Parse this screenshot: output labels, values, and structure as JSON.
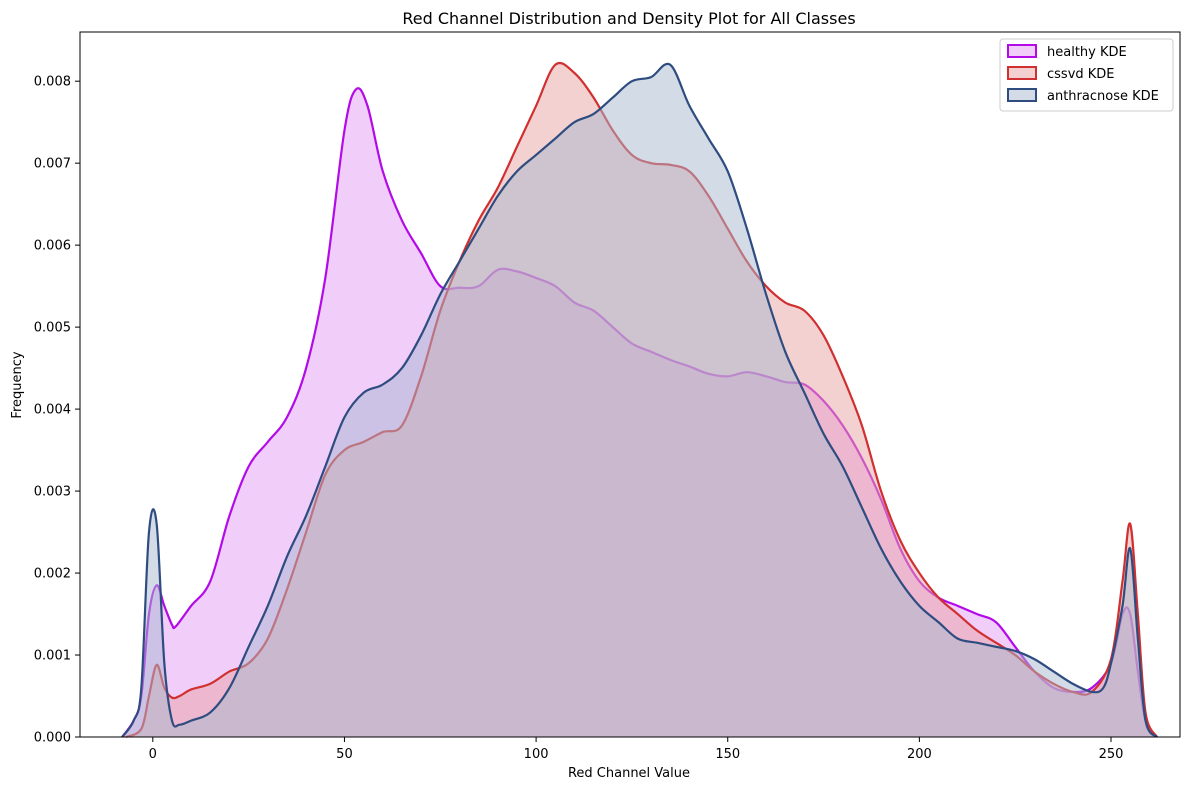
{
  "chart_data": {
    "type": "area",
    "title": "Red Channel Distribution and Density Plot for All Classes",
    "xlabel": "Red Channel Value",
    "ylabel": "Frequency",
    "xlim": [
      -19,
      268
    ],
    "ylim": [
      0,
      0.0086
    ],
    "xticks": [
      0,
      50,
      100,
      150,
      200,
      250
    ],
    "yticks": [
      0.0,
      0.001,
      0.002,
      0.003,
      0.004,
      0.005,
      0.006,
      0.007,
      0.008
    ],
    "ytick_labels": [
      "0.000",
      "0.001",
      "0.002",
      "0.003",
      "0.004",
      "0.005",
      "0.006",
      "0.007",
      "0.008"
    ],
    "grid": false,
    "legend_position": "top-right",
    "series": [
      {
        "name": "healthy KDE",
        "color": "#b20be8",
        "fill": "#e49bf6",
        "points": [
          [
            -8,
            0
          ],
          [
            -5,
            0.0002
          ],
          [
            -3,
            0.0005
          ],
          [
            -1,
            0.0015
          ],
          [
            1,
            0.00185
          ],
          [
            3,
            0.0016
          ],
          [
            5,
            0.00137
          ],
          [
            6,
            0.00135
          ],
          [
            10,
            0.0016
          ],
          [
            15,
            0.0019
          ],
          [
            20,
            0.0027
          ],
          [
            25,
            0.0033
          ],
          [
            30,
            0.0036
          ],
          [
            35,
            0.0039
          ],
          [
            40,
            0.0045
          ],
          [
            45,
            0.0056
          ],
          [
            50,
            0.0074
          ],
          [
            53,
            0.0079
          ],
          [
            56,
            0.0077
          ],
          [
            60,
            0.0069
          ],
          [
            65,
            0.0063
          ],
          [
            70,
            0.0059
          ],
          [
            75,
            0.0055
          ],
          [
            80,
            0.00548
          ],
          [
            85,
            0.0055
          ],
          [
            90,
            0.0057
          ],
          [
            95,
            0.00568
          ],
          [
            100,
            0.0056
          ],
          [
            105,
            0.0055
          ],
          [
            110,
            0.0053
          ],
          [
            115,
            0.0052
          ],
          [
            120,
            0.005
          ],
          [
            125,
            0.0048
          ],
          [
            130,
            0.0047
          ],
          [
            135,
            0.0046
          ],
          [
            140,
            0.00452
          ],
          [
            145,
            0.00443
          ],
          [
            150,
            0.0044
          ],
          [
            155,
            0.00445
          ],
          [
            160,
            0.0044
          ],
          [
            165,
            0.00433
          ],
          [
            170,
            0.0043
          ],
          [
            175,
            0.0041
          ],
          [
            180,
            0.0038
          ],
          [
            185,
            0.0034
          ],
          [
            190,
            0.0029
          ],
          [
            195,
            0.0023
          ],
          [
            200,
            0.0019
          ],
          [
            205,
            0.0017
          ],
          [
            210,
            0.0016
          ],
          [
            215,
            0.0015
          ],
          [
            220,
            0.0014
          ],
          [
            225,
            0.0011
          ],
          [
            230,
            0.0008
          ],
          [
            235,
            0.0006
          ],
          [
            240,
            0.00055
          ],
          [
            245,
            0.0006
          ],
          [
            250,
            0.0009
          ],
          [
            253,
            0.0015
          ],
          [
            255,
            0.0015
          ],
          [
            257,
            0.0008
          ],
          [
            259,
            0.0002
          ],
          [
            262,
            0
          ]
        ]
      },
      {
        "name": "cssvd KDE",
        "color": "#d03030",
        "fill": "#e9a3a3",
        "points": [
          [
            -7,
            0
          ],
          [
            -3,
            0.0001
          ],
          [
            -1,
            0.0005
          ],
          [
            1,
            0.00088
          ],
          [
            3,
            0.0006
          ],
          [
            5,
            0.00048
          ],
          [
            7,
            0.0005
          ],
          [
            10,
            0.00058
          ],
          [
            15,
            0.00065
          ],
          [
            20,
            0.0008
          ],
          [
            25,
            0.0009
          ],
          [
            30,
            0.0012
          ],
          [
            35,
            0.0018
          ],
          [
            40,
            0.0025
          ],
          [
            45,
            0.0032
          ],
          [
            50,
            0.0035
          ],
          [
            55,
            0.0036
          ],
          [
            60,
            0.00372
          ],
          [
            65,
            0.0038
          ],
          [
            70,
            0.0044
          ],
          [
            75,
            0.0052
          ],
          [
            80,
            0.0058
          ],
          [
            85,
            0.0063
          ],
          [
            90,
            0.0067
          ],
          [
            95,
            0.0072
          ],
          [
            100,
            0.0077
          ],
          [
            105,
            0.0082
          ],
          [
            110,
            0.0081
          ],
          [
            115,
            0.0078
          ],
          [
            120,
            0.0074
          ],
          [
            125,
            0.0071
          ],
          [
            130,
            0.007
          ],
          [
            135,
            0.00698
          ],
          [
            140,
            0.0069
          ],
          [
            145,
            0.0066
          ],
          [
            150,
            0.0062
          ],
          [
            155,
            0.0058
          ],
          [
            160,
            0.0055
          ],
          [
            165,
            0.0053
          ],
          [
            170,
            0.0052
          ],
          [
            175,
            0.0049
          ],
          [
            180,
            0.0044
          ],
          [
            185,
            0.0038
          ],
          [
            190,
            0.003
          ],
          [
            195,
            0.0024
          ],
          [
            200,
            0.002
          ],
          [
            205,
            0.0017
          ],
          [
            210,
            0.0015
          ],
          [
            215,
            0.0013
          ],
          [
            220,
            0.00115
          ],
          [
            225,
            0.001
          ],
          [
            230,
            0.0008
          ],
          [
            235,
            0.00065
          ],
          [
            240,
            0.00055
          ],
          [
            245,
            0.00055
          ],
          [
            250,
            0.00095
          ],
          [
            253,
            0.0019
          ],
          [
            255,
            0.0026
          ],
          [
            257,
            0.0015
          ],
          [
            259,
            0.0003
          ],
          [
            262,
            0
          ]
        ]
      },
      {
        "name": "anthracnose KDE",
        "color": "#2e4c80",
        "fill": "#a8b7cf",
        "points": [
          [
            -8,
            0
          ],
          [
            -5,
            0.0002
          ],
          [
            -3,
            0.0006
          ],
          [
            -1,
            0.0025
          ],
          [
            1,
            0.0026
          ],
          [
            3,
            0.0009
          ],
          [
            5,
            0.0002
          ],
          [
            7,
            0.00015
          ],
          [
            10,
            0.0002
          ],
          [
            15,
            0.0003
          ],
          [
            20,
            0.0006
          ],
          [
            25,
            0.0011
          ],
          [
            30,
            0.0016
          ],
          [
            35,
            0.0022
          ],
          [
            40,
            0.0027
          ],
          [
            45,
            0.0033
          ],
          [
            50,
            0.0039
          ],
          [
            55,
            0.0042
          ],
          [
            60,
            0.0043
          ],
          [
            65,
            0.0045
          ],
          [
            70,
            0.0049
          ],
          [
            75,
            0.0054
          ],
          [
            80,
            0.0058
          ],
          [
            85,
            0.0062
          ],
          [
            90,
            0.0066
          ],
          [
            95,
            0.0069
          ],
          [
            100,
            0.0071
          ],
          [
            105,
            0.0073
          ],
          [
            110,
            0.0075
          ],
          [
            115,
            0.0076
          ],
          [
            120,
            0.0078
          ],
          [
            125,
            0.008
          ],
          [
            130,
            0.00805
          ],
          [
            135,
            0.0082
          ],
          [
            140,
            0.0077
          ],
          [
            145,
            0.0073
          ],
          [
            150,
            0.0069
          ],
          [
            155,
            0.0062
          ],
          [
            160,
            0.0054
          ],
          [
            165,
            0.0047
          ],
          [
            170,
            0.0042
          ],
          [
            175,
            0.0037
          ],
          [
            180,
            0.0033
          ],
          [
            185,
            0.0028
          ],
          [
            190,
            0.0023
          ],
          [
            195,
            0.0019
          ],
          [
            200,
            0.0016
          ],
          [
            205,
            0.0014
          ],
          [
            210,
            0.0012
          ],
          [
            215,
            0.00115
          ],
          [
            220,
            0.0011
          ],
          [
            225,
            0.00105
          ],
          [
            230,
            0.00095
          ],
          [
            235,
            0.0008
          ],
          [
            240,
            0.00065
          ],
          [
            245,
            0.00055
          ],
          [
            248,
            0.0006
          ],
          [
            250,
            0.0009
          ],
          [
            253,
            0.0016
          ],
          [
            255,
            0.0023
          ],
          [
            257,
            0.0012
          ],
          [
            259,
            0.0002
          ],
          [
            262,
            0
          ]
        ]
      }
    ]
  }
}
